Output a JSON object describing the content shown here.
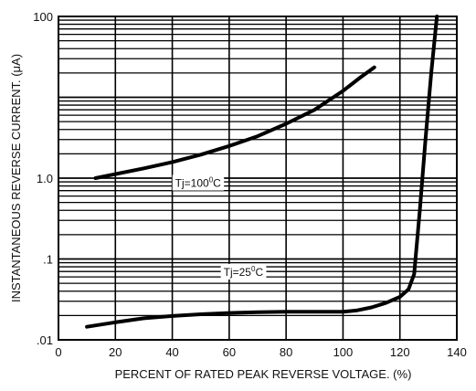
{
  "chart_data": {
    "type": "line",
    "xlabel": "PERCENT OF RATED PEAK REVERSE VOLTAGE. (%)",
    "ylabel": "INSTANTANEOUS REVERSE CURRENT. (μA)",
    "xlim": [
      0,
      140
    ],
    "ylim": [
      0.01,
      100
    ],
    "yscale": "log",
    "grid": true,
    "x_ticks": [
      0,
      20,
      40,
      60,
      80,
      100,
      120,
      140
    ],
    "y_ticks": [
      {
        "value": 0.01,
        "label": ".01"
      },
      {
        "value": 0.1,
        "label": ".1"
      },
      {
        "value": 1.0,
        "label": "1.0"
      },
      {
        "value": 100,
        "label": "100"
      }
    ],
    "series": [
      {
        "label": {
          "text": "Tj=100",
          "sup": "0",
          "suffix": "C",
          "x": 41,
          "y": 0.78
        },
        "points": [
          [
            13,
            1.0
          ],
          [
            20,
            1.12
          ],
          [
            30,
            1.32
          ],
          [
            40,
            1.58
          ],
          [
            50,
            1.95
          ],
          [
            60,
            2.5
          ],
          [
            70,
            3.3
          ],
          [
            80,
            4.7
          ],
          [
            90,
            7.0
          ],
          [
            100,
            12.0
          ],
          [
            106,
            17.5
          ],
          [
            111,
            23.5
          ]
        ]
      },
      {
        "label": {
          "text": "Tj=25",
          "sup": "0",
          "suffix": "C",
          "x": 58,
          "y": 0.062
        },
        "points": [
          [
            10,
            0.0145
          ],
          [
            20,
            0.0165
          ],
          [
            30,
            0.0185
          ],
          [
            40,
            0.0197
          ],
          [
            50,
            0.0207
          ],
          [
            60,
            0.0215
          ],
          [
            70,
            0.022
          ],
          [
            80,
            0.0222
          ],
          [
            90,
            0.0222
          ],
          [
            100,
            0.0222
          ],
          [
            105,
            0.0232
          ],
          [
            110,
            0.0252
          ],
          [
            115,
            0.0285
          ],
          [
            120,
            0.034
          ],
          [
            123,
            0.042
          ],
          [
            125,
            0.065
          ],
          [
            127,
            0.4
          ],
          [
            129,
            3.0
          ],
          [
            131,
            20.0
          ],
          [
            133,
            100.0
          ]
        ]
      }
    ]
  }
}
